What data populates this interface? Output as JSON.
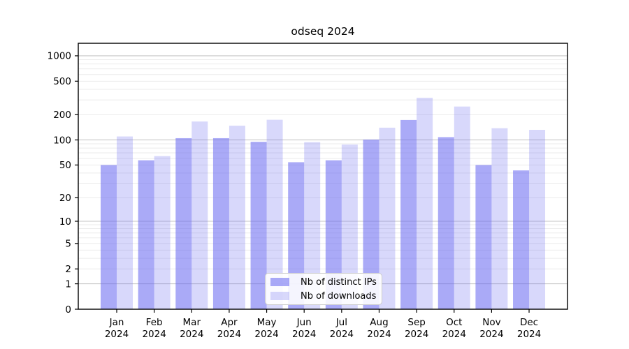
{
  "chart_data": {
    "type": "bar",
    "title": "odseq 2024",
    "categories": [
      "Jan",
      "Feb",
      "Mar",
      "Apr",
      "May",
      "Jun",
      "Jul",
      "Aug",
      "Sep",
      "Oct",
      "Nov",
      "Dec"
    ],
    "x_axis": {
      "year": "2024"
    },
    "series": [
      {
        "name": "Nb of distinct IPs",
        "color": "#6565f1",
        "fill_opacity": 0.55,
        "apparent_color": "#aaaaf6",
        "values": [
          50,
          57,
          105,
          105,
          95,
          54,
          57,
          101,
          173,
          108,
          50,
          43
        ]
      },
      {
        "name": "Nb of downloads",
        "color": "#6565f1",
        "fill_opacity": 0.25,
        "apparent_color": "#dadaf8",
        "values": [
          110,
          64,
          166,
          148,
          174,
          94,
          88,
          140,
          318,
          250,
          138,
          132
        ]
      }
    ],
    "y_axis": {
      "scale": "log(v+1)",
      "tick_values": [
        1000,
        500,
        200,
        100,
        50,
        20,
        10,
        5,
        2,
        1,
        0
      ],
      "range_bottom": 0
    },
    "grid": {
      "major_color": "#c6c6c6",
      "minor_color": "#ebebeb",
      "major_at": [
        1,
        10,
        100,
        1000
      ]
    },
    "legend": {
      "position": "bottom-center"
    },
    "frame_color": "#000000"
  }
}
